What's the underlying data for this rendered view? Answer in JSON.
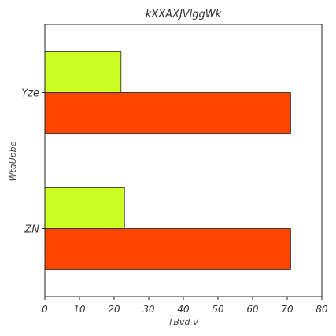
{
  "chart_data": {
    "type": "bar",
    "orientation": "horizontal",
    "title": "kXXAXJVlggWk",
    "xlabel": "TBvd V",
    "ylabel": "WtaUpbe",
    "categories": [
      "ZN",
      "Yze"
    ],
    "xlim": [
      0,
      80
    ],
    "xticks": [
      0,
      10,
      20,
      30,
      40,
      50,
      60,
      70,
      80
    ],
    "grid": false,
    "legend": false,
    "series": [
      {
        "values": [
          71,
          71
        ],
        "color": "#ff4500"
      },
      {
        "values": [
          23,
          22
        ],
        "color": "#ccff22"
      }
    ]
  }
}
